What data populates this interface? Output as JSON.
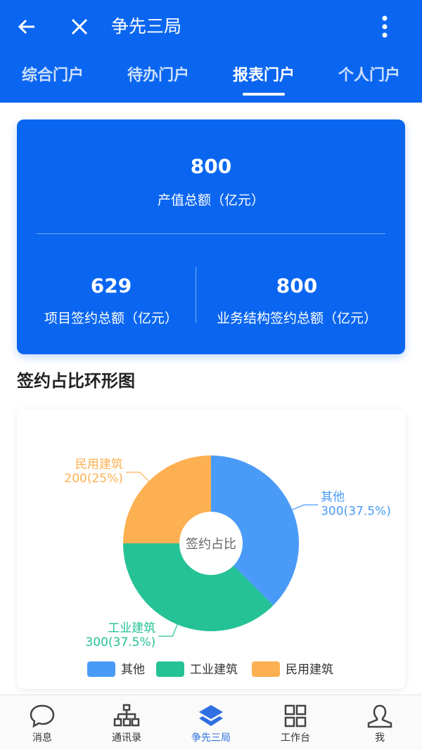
{
  "header": {
    "title": "争先三局",
    "back_icon": "arrow-left-icon",
    "close_icon": "close-icon",
    "more_icon": "more-vertical-icon",
    "tabs": [
      {
        "label": "综合门户"
      },
      {
        "label": "待办门户"
      },
      {
        "label": "报表门户",
        "active": true
      },
      {
        "label": "个人门户"
      }
    ]
  },
  "summary": {
    "total_value": "800",
    "total_label": "产值总额（亿元）",
    "project_value": "629",
    "project_label": "项目签约总额（亿元）",
    "business_value": "800",
    "business_label": "业务结构签约总额（亿元）"
  },
  "section_title": "签约占比环形图",
  "chart_data": {
    "type": "pie",
    "donut": true,
    "center_label": "签约占比",
    "legend_position": "bottom",
    "series": [
      {
        "name": "其他",
        "value": 300,
        "label": "300(37.5%)",
        "color": "#4a9bf7"
      },
      {
        "name": "工业建筑",
        "value": 300,
        "label": "300(37.5%)",
        "color": "#25c296"
      },
      {
        "name": "民用建筑",
        "value": 200,
        "label": "200(25%)",
        "color": "#fdb052"
      }
    ]
  },
  "nav": [
    {
      "label": "消息",
      "icon": "chat-bubble-icon"
    },
    {
      "label": "通讯录",
      "icon": "org-chart-icon"
    },
    {
      "label": "争先三局",
      "icon": "layers-icon",
      "active": true
    },
    {
      "label": "工作台",
      "icon": "grid-icon"
    },
    {
      "label": "我",
      "icon": "user-icon"
    }
  ],
  "colors": {
    "primary": "#0a66f0",
    "nav_active": "#2f6fe0"
  }
}
